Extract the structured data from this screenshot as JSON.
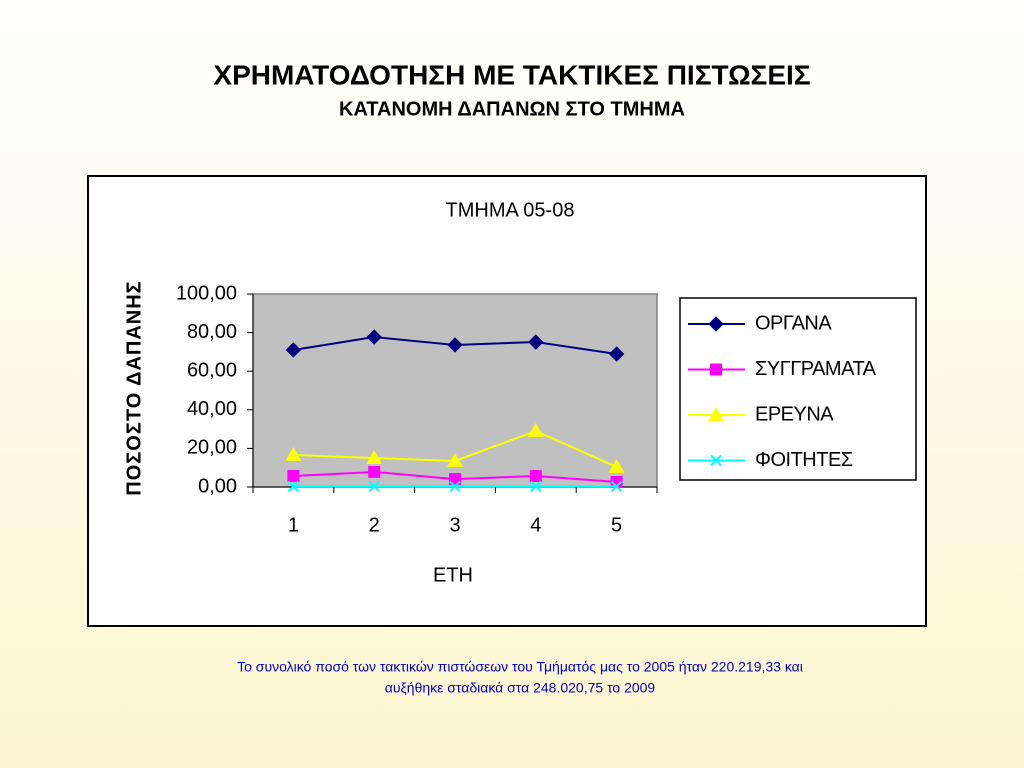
{
  "slide": {
    "title": "ΧΡΗΜΑΤΟΔΟΤΗΣΗ ΜΕ ΤΑΚΤΙΚΕΣ ΠΙΣΤΩΣΕΙΣ",
    "subtitle": "ΚΑΤΑΝΟΜΗ ΔΑΠΑΝΩΝ ΣΤΟ ΤΜΗΜΑ",
    "caption": [
      "Το συνολικό ποσό των τακτικών πιστώσεων του Τμήματός μας το 2005 ήταν 220.219,33  και",
      "αυξήθηκε σταδιακά στα 248.020,75 το 2009"
    ]
  },
  "chart_data": {
    "type": "line",
    "title": "ΤΜΗΜΑ 05-08",
    "x_label": "ΕΤΗ",
    "y_label": "ΠΟΣΟΣΤΟ ΔΑΠΑΝΗΣ",
    "categories": [
      "1",
      "2",
      "3",
      "4",
      "5"
    ],
    "series": [
      {
        "name": "ΟΡΓΑΝΑ",
        "color": "#000080",
        "marker": "diamond",
        "values": [
          71.0,
          77.7,
          73.6,
          75.1,
          68.9
        ]
      },
      {
        "name": "ΣΥΓΓΡΑΜΑΤΑ",
        "color": "#ff00ff",
        "marker": "square",
        "values": [
          5.7,
          7.8,
          4.1,
          5.7,
          2.6
        ]
      },
      {
        "name": "ΕΡΕΥΝΑ",
        "color": "#ffff00",
        "marker": "triangle",
        "values": [
          16.6,
          15.0,
          13.5,
          29.0,
          10.4
        ]
      },
      {
        "name": "ΦΟΙΤΗΤΕΣ",
        "color": "#00ffff",
        "marker": "x",
        "values": [
          0.3,
          0.3,
          0.3,
          0.3,
          0.3
        ]
      }
    ],
    "ylim": [
      0,
      100
    ],
    "yticks": [
      {
        "value": 0,
        "label": "0,00"
      },
      {
        "value": 20,
        "label": "20,00"
      },
      {
        "value": 40,
        "label": "40,00"
      },
      {
        "value": 60,
        "label": "60,00"
      },
      {
        "value": 80,
        "label": "80,00"
      },
      {
        "value": 100,
        "label": "100,00"
      }
    ],
    "grid": false,
    "legend": "right",
    "plot_background": "#c0c0c0"
  }
}
